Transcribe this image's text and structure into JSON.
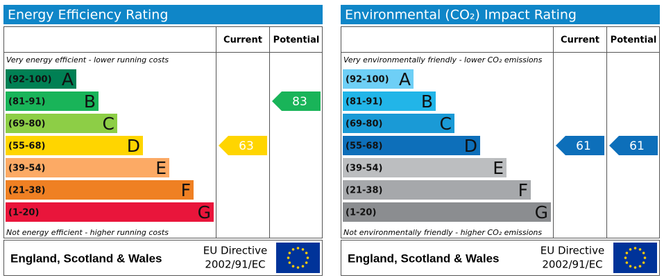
{
  "panels": [
    {
      "title": "Energy Efficiency Rating",
      "header": {
        "current": "Current",
        "potential": "Potential"
      },
      "top_note": "Very energy efficient - lower running costs",
      "bottom_note": "Not energy efficient - higher running costs",
      "bands": [
        {
          "range": "(92-100)",
          "letter": "A",
          "color": "#008054"
        },
        {
          "range": "(81-91)",
          "letter": "B",
          "color": "#19b459"
        },
        {
          "range": "(69-80)",
          "letter": "C",
          "color": "#8dce46"
        },
        {
          "range": "(55-68)",
          "letter": "D",
          "color": "#ffd500"
        },
        {
          "range": "(39-54)",
          "letter": "E",
          "color": "#fcaa65"
        },
        {
          "range": "(21-38)",
          "letter": "F",
          "color": "#ef8023"
        },
        {
          "range": "(1-20)",
          "letter": "G",
          "color": "#e9153b"
        }
      ],
      "current": {
        "value": 63,
        "color": "#ffd500"
      },
      "potential": {
        "value": 83,
        "color": "#19b459"
      },
      "footer": {
        "region": "England, Scotland & Wales",
        "directive": "EU Directive",
        "code": "2002/91/EC"
      }
    },
    {
      "title": "Environmental (CO₂) Impact Rating",
      "header": {
        "current": "Current",
        "potential": "Potential"
      },
      "top_note": "Very environmentally friendly - lower CO₂ emissions",
      "bottom_note": "Not environmentally friendly - higher CO₂ emissions",
      "bands": [
        {
          "range": "(92-100)",
          "letter": "A",
          "color": "#6ecff6"
        },
        {
          "range": "(81-91)",
          "letter": "B",
          "color": "#22b5e8"
        },
        {
          "range": "(69-80)",
          "letter": "C",
          "color": "#1a9ad6"
        },
        {
          "range": "(55-68)",
          "letter": "D",
          "color": "#0d6fba"
        },
        {
          "range": "(39-54)",
          "letter": "E",
          "color": "#bcbec0"
        },
        {
          "range": "(21-38)",
          "letter": "F",
          "color": "#a6a8ab"
        },
        {
          "range": "(1-20)",
          "letter": "G",
          "color": "#8b8d90"
        }
      ],
      "current": {
        "value": 61,
        "color": "#0d6fba"
      },
      "potential": {
        "value": 61,
        "color": "#0d6fba"
      },
      "footer": {
        "region": "England, Scotland & Wales",
        "directive": "EU Directive",
        "code": "2002/91/EC"
      }
    }
  ]
}
